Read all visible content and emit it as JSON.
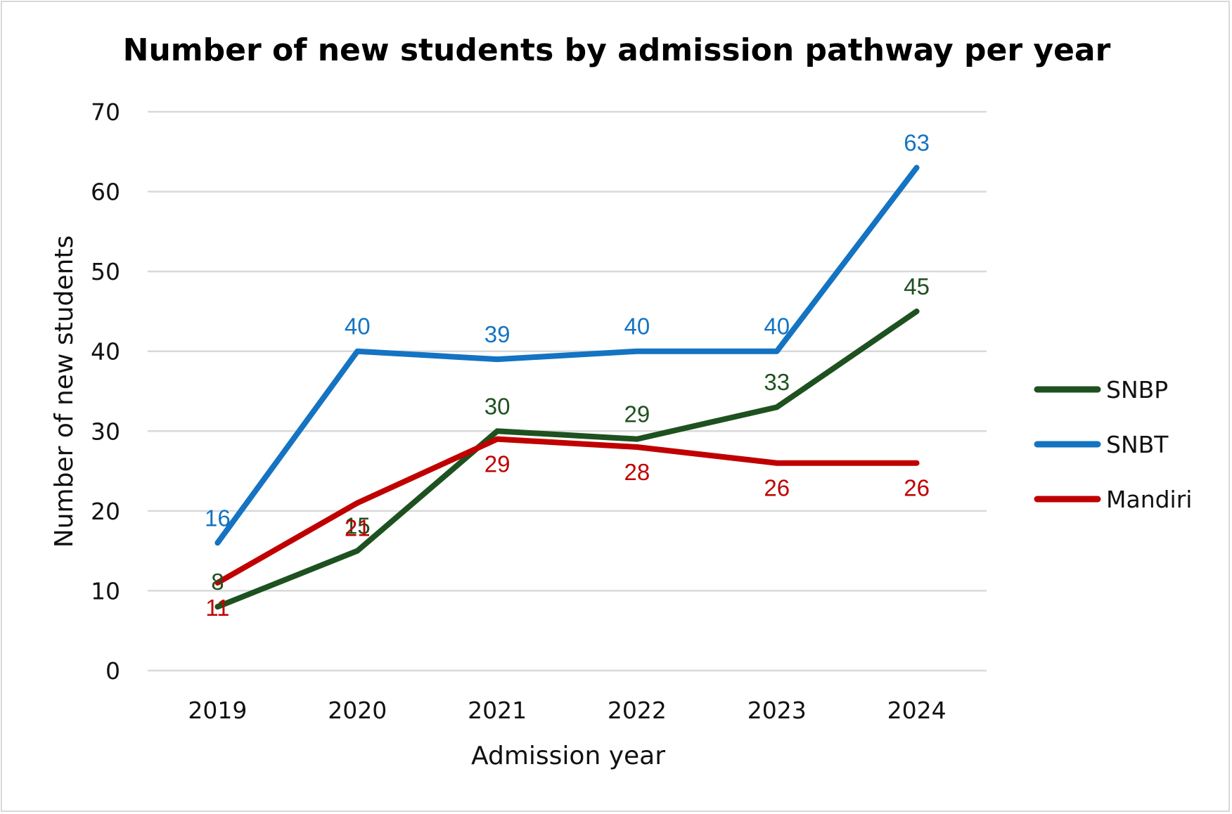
{
  "chart_data": {
    "type": "line",
    "title": "Number of new students by admission pathway per year",
    "xlabel": "Admission year",
    "ylabel": "Number of new students",
    "categories": [
      "2019",
      "2020",
      "2021",
      "2022",
      "2023",
      "2024"
    ],
    "ylim": [
      0,
      70
    ],
    "yticks": [
      0,
      10,
      20,
      30,
      40,
      50,
      60,
      70
    ],
    "grid": true,
    "legend_position": "right",
    "series": [
      {
        "name": "SNBP",
        "color": "#1e5120",
        "values": [
          8,
          15,
          30,
          29,
          33,
          45
        ]
      },
      {
        "name": "SNBT",
        "color": "#1473c2",
        "values": [
          16,
          40,
          39,
          40,
          40,
          63
        ]
      },
      {
        "name": "Mandiri",
        "color": "#c00000",
        "values": [
          11,
          21,
          29,
          28,
          26,
          26
        ]
      }
    ]
  }
}
